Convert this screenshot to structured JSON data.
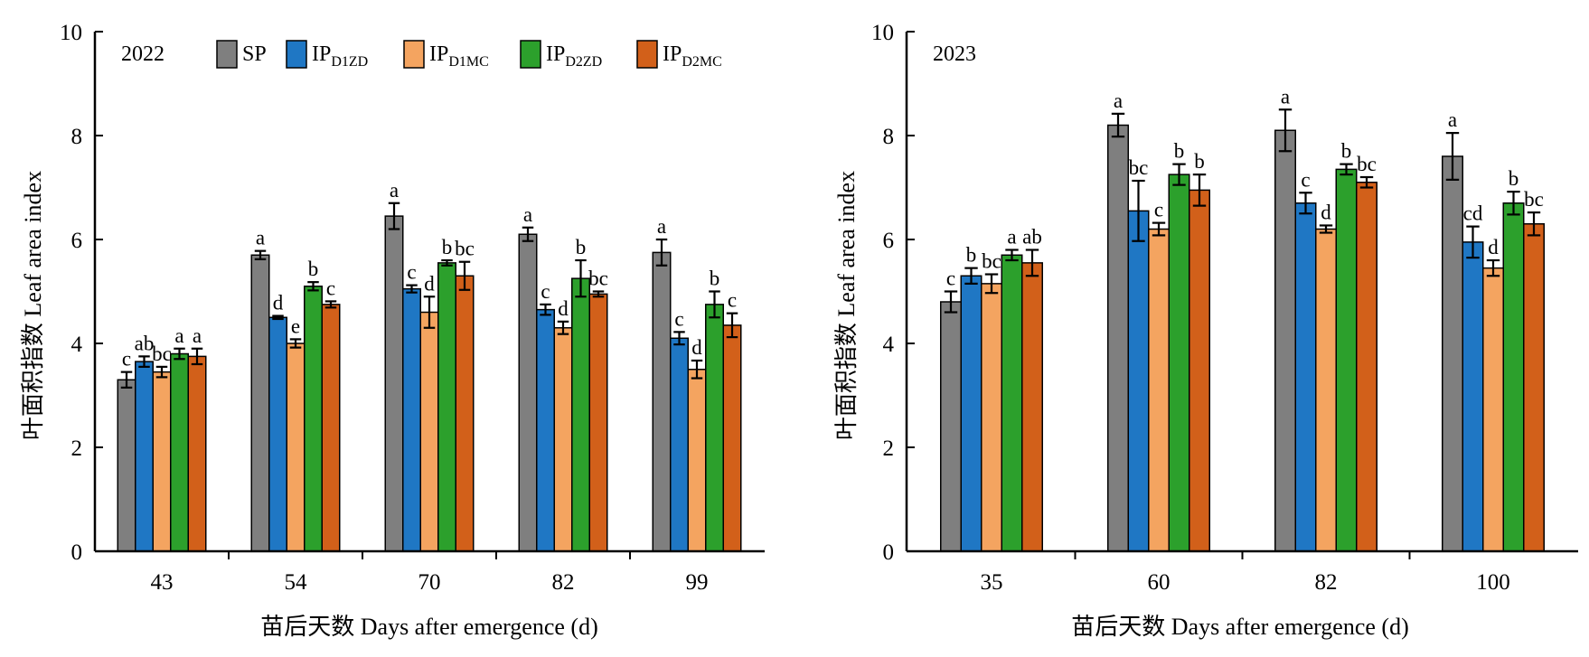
{
  "legend": {
    "entries": [
      {
        "key": "SP",
        "label": "SP",
        "sub": "",
        "color": "#7f7f7f"
      },
      {
        "key": "D1ZD",
        "label": "IP",
        "sub": "D1ZD",
        "color": "#1f77c4"
      },
      {
        "key": "D1MC",
        "label": "IP",
        "sub": "D1MC",
        "color": "#f4a460"
      },
      {
        "key": "D2ZD",
        "label": "IP",
        "sub": "D2ZD",
        "color": "#2ca02c"
      },
      {
        "key": "D2MC",
        "label": "IP",
        "sub": "D2MC",
        "color": "#d2601a"
      }
    ]
  },
  "chart_data": [
    {
      "type": "bar",
      "panel_label": "2022",
      "xlabel": "苗后天数 Days after emergence (d)",
      "ylabel": "叶面积指数 Leaf area index",
      "ylim": [
        0,
        10
      ],
      "yticks": [
        0,
        2,
        4,
        6,
        8,
        10
      ],
      "categories": [
        "43",
        "54",
        "70",
        "82",
        "99"
      ],
      "series": [
        {
          "name": "SP",
          "color": "#7f7f7f",
          "values": [
            3.3,
            5.7,
            6.45,
            6.1,
            5.75
          ],
          "errors": [
            0.15,
            0.08,
            0.25,
            0.13,
            0.25
          ],
          "letters": [
            "c",
            "a",
            "a",
            "a",
            "a"
          ]
        },
        {
          "name": "IPD1ZD",
          "color": "#1f77c4",
          "values": [
            3.65,
            4.5,
            5.05,
            4.65,
            4.1
          ],
          "errors": [
            0.1,
            0.03,
            0.07,
            0.1,
            0.12
          ],
          "letters": [
            "ab",
            "d",
            "c",
            "c",
            "c"
          ]
        },
        {
          "name": "IPD1MC",
          "color": "#f4a460",
          "values": [
            3.45,
            4.0,
            4.6,
            4.3,
            3.5
          ],
          "errors": [
            0.1,
            0.08,
            0.3,
            0.12,
            0.17
          ],
          "letters": [
            "bc",
            "e",
            "d",
            "d",
            "d"
          ]
        },
        {
          "name": "IPD2ZD",
          "color": "#2ca02c",
          "values": [
            3.8,
            5.1,
            5.55,
            5.25,
            4.75
          ],
          "errors": [
            0.1,
            0.08,
            0.05,
            0.35,
            0.25
          ],
          "letters": [
            "a",
            "b",
            "b",
            "b",
            "b"
          ]
        },
        {
          "name": "IPD2MC",
          "color": "#d2601a",
          "values": [
            3.75,
            4.75,
            5.3,
            4.95,
            4.35
          ],
          "errors": [
            0.15,
            0.06,
            0.27,
            0.05,
            0.23
          ],
          "letters": [
            "a",
            "c",
            "bc",
            "bc",
            "c"
          ]
        }
      ]
    },
    {
      "type": "bar",
      "panel_label": "2023",
      "xlabel": "苗后天数 Days after emergence (d)",
      "ylabel": "叶面积指数 Leaf area index",
      "ylim": [
        0,
        10
      ],
      "yticks": [
        0,
        2,
        4,
        6,
        8,
        10
      ],
      "categories": [
        "35",
        "60",
        "82",
        "100"
      ],
      "series": [
        {
          "name": "SP",
          "color": "#7f7f7f",
          "values": [
            4.8,
            8.2,
            8.1,
            7.6
          ],
          "errors": [
            0.2,
            0.22,
            0.4,
            0.45
          ],
          "letters": [
            "c",
            "a",
            "a",
            "a"
          ]
        },
        {
          "name": "IPD1ZD",
          "color": "#1f77c4",
          "values": [
            5.3,
            6.55,
            6.7,
            5.95
          ],
          "errors": [
            0.15,
            0.58,
            0.2,
            0.3
          ],
          "letters": [
            "b",
            "bc",
            "c",
            "cd"
          ]
        },
        {
          "name": "IPD1MC",
          "color": "#f4a460",
          "values": [
            5.15,
            6.2,
            6.2,
            5.45
          ],
          "errors": [
            0.18,
            0.12,
            0.07,
            0.15
          ],
          "letters": [
            "bc",
            "c",
            "d",
            "d"
          ]
        },
        {
          "name": "IPD2ZD",
          "color": "#2ca02c",
          "values": [
            5.7,
            7.25,
            7.35,
            6.7
          ],
          "errors": [
            0.1,
            0.2,
            0.1,
            0.22
          ],
          "letters": [
            "a",
            "b",
            "b",
            "b"
          ]
        },
        {
          "name": "IPD2MC",
          "color": "#d2601a",
          "values": [
            5.55,
            6.95,
            7.1,
            6.3
          ],
          "errors": [
            0.25,
            0.3,
            0.1,
            0.22
          ],
          "letters": [
            "ab",
            "b",
            "bc",
            "bc"
          ]
        }
      ]
    }
  ]
}
